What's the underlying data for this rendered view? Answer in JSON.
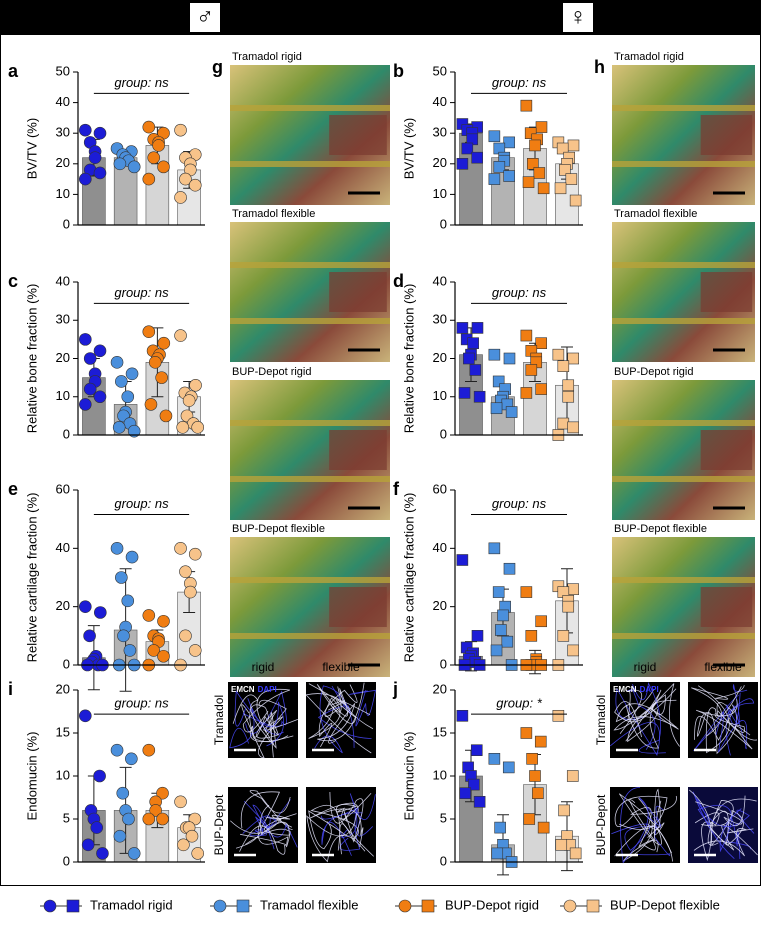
{
  "header": {
    "male": "♂",
    "female": "♀"
  },
  "histology": [
    {
      "panel": "g",
      "images": [
        "Tramadol rigid",
        "Tramadol flexible",
        "BUP-Depot rigid",
        "BUP-Depot flexible"
      ]
    },
    {
      "panel": "h",
      "images": [
        "Tramadol rigid",
        "Tramadol flexible",
        "BUP-Depot rigid",
        "BUP-Depot flexible"
      ]
    }
  ],
  "fluorescence": [
    {
      "columns": [
        "rigid",
        "flexible"
      ],
      "rows": [
        "Tramadol",
        "BUP-Depot"
      ],
      "stains": [
        "EMCN",
        "DAPI"
      ]
    },
    {
      "columns": [
        "rigid",
        "flexible"
      ],
      "rows": [
        "Tramadol",
        "BUP-Depot"
      ],
      "stains": [
        "EMCN",
        "DAPI"
      ]
    }
  ],
  "chart_data": [
    {
      "type": "bar",
      "panel": "a",
      "y_label": "BV/TV (%)",
      "annotation": "group: ns",
      "marker": "circle",
      "ylim": [
        0,
        50
      ],
      "yticks": [
        0,
        10,
        20,
        30,
        40,
        50
      ],
      "series": [
        {
          "name": "Tramadol rigid",
          "color": "#1c1cd6",
          "bar_color": "#8f8f8f",
          "values": [
            22
          ],
          "errors": [
            6
          ],
          "points": [
            31,
            30,
            27,
            24,
            22,
            18,
            17,
            15
          ]
        },
        {
          "name": "Tramadol flexible",
          "color": "#4a8fdc",
          "bar_color": "#b3b3b3",
          "values": [
            22
          ],
          "errors": [
            2
          ],
          "points": [
            25,
            24,
            23,
            22,
            21,
            20,
            19
          ]
        },
        {
          "name": "BUP-Depot rigid",
          "color": "#f07d12",
          "bar_color": "#d6d6d6",
          "values": [
            26
          ],
          "errors": [
            6
          ],
          "points": [
            32,
            30,
            28,
            27,
            26,
            22,
            19,
            15
          ]
        },
        {
          "name": "BUP-Depot flexible",
          "color": "#f7c38a",
          "bar_color": "#e6e6e6",
          "values": [
            18
          ],
          "errors": [
            6
          ],
          "points": [
            31,
            23,
            22,
            20,
            18,
            15,
            13,
            9
          ]
        }
      ]
    },
    {
      "type": "bar",
      "panel": "c",
      "y_label": "Relative bone fraction (%)",
      "annotation": "group: ns",
      "marker": "circle",
      "ylim": [
        0,
        40
      ],
      "yticks": [
        0,
        10,
        20,
        30,
        40
      ],
      "series": [
        {
          "name": "Tramadol rigid",
          "color": "#1c1cd6",
          "bar_color": "#8f8f8f",
          "values": [
            15
          ],
          "errors": [
            5
          ],
          "points": [
            25,
            22,
            20,
            16,
            14,
            12,
            10,
            8
          ]
        },
        {
          "name": "Tramadol flexible",
          "color": "#4a8fdc",
          "bar_color": "#b3b3b3",
          "values": [
            8
          ],
          "errors": [
            6
          ],
          "points": [
            19,
            16,
            14,
            10,
            6,
            5,
            3,
            2,
            1
          ]
        },
        {
          "name": "BUP-Depot rigid",
          "color": "#f07d12",
          "bar_color": "#d6d6d6",
          "values": [
            19
          ],
          "errors": [
            9
          ],
          "points": [
            27,
            24,
            22,
            21,
            20,
            19,
            15,
            8,
            5
          ]
        },
        {
          "name": "BUP-Depot flexible",
          "color": "#f7c38a",
          "bar_color": "#e6e6e6",
          "values": [
            10
          ],
          "errors": [
            4
          ],
          "points": [
            26,
            13,
            11,
            10,
            9,
            5,
            3,
            2,
            2
          ]
        }
      ]
    },
    {
      "type": "bar",
      "panel": "e",
      "y_label": "Relative cartilage fraction (%)",
      "annotation": "group: ns",
      "marker": "circle",
      "ylim": [
        0,
        60
      ],
      "yticks": [
        0,
        20,
        40,
        60
      ],
      "series": [
        {
          "name": "Tramadol rigid",
          "color": "#1c1cd6",
          "bar_color": "#8f8f8f",
          "values": [
            2.5
          ],
          "errors": [
            11
          ],
          "points": [
            20,
            18,
            10,
            3,
            2,
            1,
            0,
            0,
            0
          ]
        },
        {
          "name": "Tramadol flexible",
          "color": "#4a8fdc",
          "bar_color": "#b3b3b3",
          "values": [
            12
          ],
          "errors": [
            21
          ],
          "points": [
            40,
            37,
            30,
            22,
            13,
            10,
            5,
            0,
            0
          ]
        },
        {
          "name": "BUP-Depot rigid",
          "color": "#f07d12",
          "bar_color": "#d6d6d6",
          "values": [
            8
          ],
          "errors": [
            4
          ],
          "points": [
            17,
            15,
            10,
            9,
            8,
            5,
            3,
            0
          ]
        },
        {
          "name": "BUP-Depot flexible",
          "color": "#f7c38a",
          "bar_color": "#e6e6e6",
          "values": [
            25
          ],
          "errors": [
            7
          ],
          "points": [
            40,
            38,
            32,
            28,
            25,
            10,
            5,
            0
          ]
        }
      ]
    },
    {
      "type": "bar",
      "panel": "i",
      "y_label": "Endomucin (%)",
      "annotation": "group: ns",
      "marker": "circle",
      "ylim": [
        0,
        20
      ],
      "yticks": [
        0,
        5,
        10,
        15,
        20
      ],
      "series": [
        {
          "name": "Tramadol rigid",
          "color": "#1c1cd6",
          "bar_color": "#8f8f8f",
          "values": [
            6
          ],
          "errors": [
            4
          ],
          "points": [
            17,
            10,
            6,
            5,
            4,
            2,
            1
          ]
        },
        {
          "name": "Tramadol flexible",
          "color": "#4a8fdc",
          "bar_color": "#b3b3b3",
          "values": [
            6
          ],
          "errors": [
            5
          ],
          "points": [
            13,
            12,
            8,
            6,
            5,
            3,
            1
          ]
        },
        {
          "name": "BUP-Depot rigid",
          "color": "#f07d12",
          "bar_color": "#d6d6d6",
          "values": [
            6
          ],
          "errors": [
            2
          ],
          "points": [
            13,
            8,
            7,
            6,
            5,
            5
          ]
        },
        {
          "name": "BUP-Depot flexible",
          "color": "#f7c38a",
          "bar_color": "#e6e6e6",
          "values": [
            4
          ],
          "errors": [
            1.5
          ],
          "points": [
            7,
            5,
            4,
            4,
            3,
            2,
            1
          ]
        }
      ]
    },
    {
      "type": "bar",
      "panel": "b",
      "y_label": "BV/TV (%)",
      "annotation": "group: ns",
      "marker": "square",
      "ylim": [
        0,
        50
      ],
      "yticks": [
        0,
        10,
        20,
        30,
        40,
        50
      ],
      "series": [
        {
          "name": "Tramadol rigid",
          "color": "#1c1cd6",
          "bar_color": "#8f8f8f",
          "values": [
            30
          ],
          "errors": [
            3
          ],
          "points": [
            33,
            32,
            31,
            30,
            28,
            25,
            22,
            20
          ]
        },
        {
          "name": "Tramadol flexible",
          "color": "#4a8fdc",
          "bar_color": "#b3b3b3",
          "values": [
            22
          ],
          "errors": [
            4
          ],
          "points": [
            29,
            27,
            25,
            22,
            21,
            19,
            16,
            15
          ]
        },
        {
          "name": "BUP-Depot rigid",
          "color": "#f07d12",
          "bar_color": "#d6d6d6",
          "values": [
            25
          ],
          "errors": [
            7
          ],
          "points": [
            39,
            32,
            30,
            28,
            26,
            20,
            17,
            14,
            12
          ]
        },
        {
          "name": "BUP-Depot flexible",
          "color": "#f7c38a",
          "bar_color": "#e6e6e6",
          "values": [
            20
          ],
          "errors": [
            5
          ],
          "points": [
            27,
            26,
            25,
            22,
            20,
            18,
            15,
            12,
            8
          ]
        }
      ]
    },
    {
      "type": "bar",
      "panel": "d",
      "y_label": "Relative bone fraction (%)",
      "annotation": "group: ns",
      "marker": "square",
      "ylim": [
        0,
        40
      ],
      "yticks": [
        0,
        10,
        20,
        30,
        40
      ],
      "series": [
        {
          "name": "Tramadol rigid",
          "color": "#1c1cd6",
          "bar_color": "#8f8f8f",
          "values": [
            21
          ],
          "errors": [
            7
          ],
          "points": [
            28,
            28,
            25,
            24,
            21,
            20,
            17,
            11,
            10
          ]
        },
        {
          "name": "Tramadol flexible",
          "color": "#4a8fdc",
          "bar_color": "#b3b3b3",
          "values": [
            10
          ],
          "errors": [
            3
          ],
          "points": [
            21,
            20,
            14,
            12,
            10,
            9,
            8,
            7,
            6
          ]
        },
        {
          "name": "BUP-Depot rigid",
          "color": "#f07d12",
          "bar_color": "#d6d6d6",
          "values": [
            19
          ],
          "errors": [
            5
          ],
          "points": [
            26,
            24,
            22,
            20,
            19,
            17,
            12,
            11
          ]
        },
        {
          "name": "BUP-Depot flexible",
          "color": "#f7c38a",
          "bar_color": "#e6e6e6",
          "values": [
            13
          ],
          "errors": [
            10
          ],
          "points": [
            21,
            20,
            18,
            13,
            10,
            3,
            2,
            0
          ]
        }
      ]
    },
    {
      "type": "bar",
      "panel": "f",
      "y_label": "Relative cartilage fraction (%)",
      "annotation": "group: ns",
      "marker": "square",
      "ylim": [
        0,
        60
      ],
      "yticks": [
        0,
        20,
        40,
        60
      ],
      "series": [
        {
          "name": "Tramadol rigid",
          "color": "#1c1cd6",
          "bar_color": "#8f8f8f",
          "values": [
            3
          ],
          "errors": [
            5
          ],
          "points": [
            36,
            10,
            6,
            4,
            3,
            2,
            1,
            0,
            0
          ]
        },
        {
          "name": "Tramadol flexible",
          "color": "#4a8fdc",
          "bar_color": "#b3b3b3",
          "values": [
            18
          ],
          "errors": [
            8
          ],
          "points": [
            40,
            33,
            25,
            20,
            17,
            12,
            8,
            5,
            0
          ]
        },
        {
          "name": "BUP-Depot rigid",
          "color": "#f07d12",
          "bar_color": "#d6d6d6",
          "values": [
            1
          ],
          "errors": [
            4
          ],
          "points": [
            25,
            15,
            10,
            2,
            1,
            0,
            0,
            0
          ]
        },
        {
          "name": "BUP-Depot flexible",
          "color": "#f7c38a",
          "bar_color": "#e6e6e6",
          "values": [
            22
          ],
          "errors": [
            11
          ],
          "points": [
            27,
            26,
            25,
            22,
            20,
            10,
            5,
            0
          ]
        }
      ]
    },
    {
      "type": "bar",
      "panel": "j",
      "y_label": "Endomucin (%)",
      "annotation": "group: *",
      "marker": "square",
      "ylim": [
        0,
        20
      ],
      "yticks": [
        0,
        5,
        10,
        15,
        20
      ],
      "series": [
        {
          "name": "Tramadol rigid",
          "color": "#1c1cd6",
          "bar_color": "#8f8f8f",
          "values": [
            10
          ],
          "errors": [
            3
          ],
          "points": [
            17,
            13,
            11,
            10,
            9,
            8,
            7
          ]
        },
        {
          "name": "Tramadol flexible",
          "color": "#4a8fdc",
          "bar_color": "#b3b3b3",
          "values": [
            2
          ],
          "errors": [
            3.5
          ],
          "points": [
            12,
            11,
            4,
            2,
            1,
            1,
            0
          ]
        },
        {
          "name": "BUP-Depot rigid",
          "color": "#f07d12",
          "bar_color": "#d6d6d6",
          "values": [
            9
          ],
          "errors": [
            3.5
          ],
          "points": [
            15,
            14,
            12,
            10,
            8,
            5,
            4
          ]
        },
        {
          "name": "BUP-Depot flexible",
          "color": "#f7c38a",
          "bar_color": "#e6e6e6",
          "values": [
            3
          ],
          "errors": [
            4
          ],
          "points": [
            17,
            10,
            6,
            3,
            2,
            2,
            1
          ]
        }
      ]
    }
  ]
}
